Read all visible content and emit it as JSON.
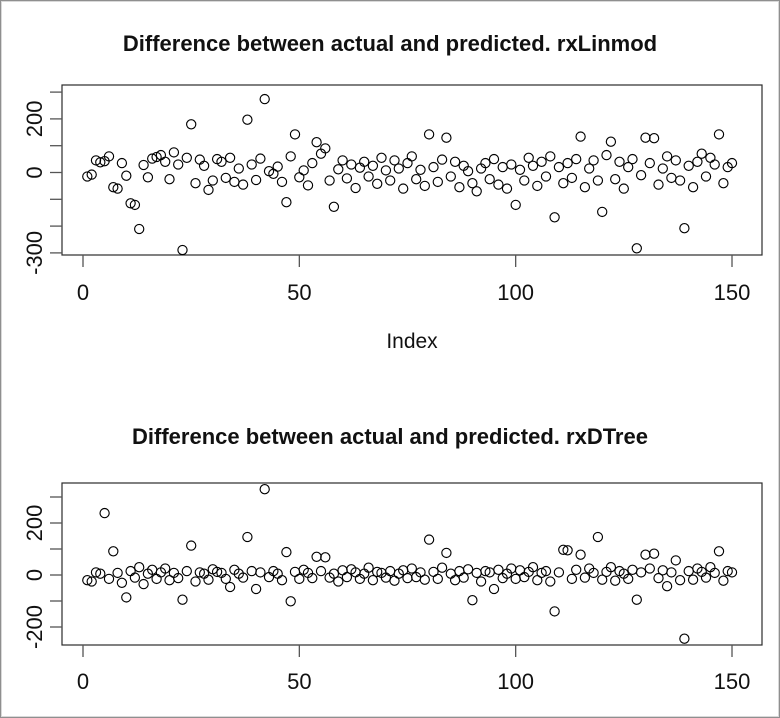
{
  "window": {
    "background_color": "#ffffff",
    "frame_color": "#8f8f8f"
  },
  "chart_data": [
    {
      "type": "scatter",
      "title": "Difference between actual and predicted. rxLinmod",
      "xlabel": "Index",
      "marker": "open-circle",
      "point_color": "#000000",
      "grid": false,
      "x_start_index": 1,
      "xlim": [
        -5,
        156
      ],
      "ylim": [
        -308,
        326
      ],
      "x_ticks": [
        {
          "value": 0,
          "label": "0"
        },
        {
          "value": 50,
          "label": "50"
        },
        {
          "value": 100,
          "label": "100"
        },
        {
          "value": 150,
          "label": "150"
        }
      ],
      "y_ticks": [
        {
          "value": 300,
          "label": ""
        },
        {
          "value": 200,
          "label": "200"
        },
        {
          "value": 100,
          "label": ""
        },
        {
          "value": 0,
          "label": "0"
        },
        {
          "value": -100,
          "label": ""
        },
        {
          "value": -200,
          "label": ""
        },
        {
          "value": -300,
          "label": "-300"
        }
      ],
      "values": [
        -15,
        -8,
        45,
        38,
        42,
        60,
        -55,
        -60,
        35,
        -12,
        -115,
        -121,
        -211,
        28,
        -18,
        52,
        58,
        65,
        40,
        -25,
        75,
        30,
        -289,
        55,
        180,
        -40,
        48,
        25,
        -65,
        -30,
        50,
        40,
        -20,
        55,
        -35,
        15,
        -45,
        197,
        30,
        -28,
        52,
        274,
        5,
        -5,
        22,
        -35,
        -111,
        60,
        142,
        -18,
        8,
        -48,
        35,
        113,
        70,
        90,
        -30,
        -128,
        12,
        45,
        -22,
        30,
        -58,
        18,
        40,
        -15,
        25,
        -42,
        55,
        8,
        -30,
        45,
        15,
        -60,
        35,
        60,
        -25,
        10,
        -50,
        142,
        20,
        -35,
        48,
        130,
        -15,
        40,
        -55,
        25,
        5,
        -40,
        -70,
        15,
        35,
        -25,
        50,
        -45,
        20,
        -60,
        30,
        -121,
        10,
        -30,
        55,
        25,
        -50,
        40,
        -15,
        60,
        -167,
        20,
        -40,
        35,
        -20,
        50,
        134,
        -55,
        15,
        45,
        -30,
        -147,
        65,
        115,
        -25,
        40,
        -60,
        20,
        50,
        -283,
        -10,
        130,
        35,
        128,
        -45,
        15,
        60,
        -20,
        45,
        -30,
        -208,
        25,
        -55,
        40,
        70,
        -15,
        55,
        30,
        142,
        -40,
        20,
        35
      ]
    },
    {
      "type": "scatter",
      "title": "Difference between actual and predicted. rxDTree",
      "marker": "open-circle",
      "point_color": "#000000",
      "grid": false,
      "x_start_index": 1,
      "xlim": [
        -5,
        156
      ],
      "ylim": [
        -355,
        355
      ],
      "x_ticks": [
        {
          "value": 0,
          "label": "0"
        },
        {
          "value": 50,
          "label": "50"
        },
        {
          "value": 100,
          "label": "100"
        },
        {
          "value": 150,
          "label": "150"
        }
      ],
      "y_ticks": [
        {
          "value": 300,
          "label": ""
        },
        {
          "value": 200,
          "label": "200"
        },
        {
          "value": 100,
          "label": ""
        },
        {
          "value": 0,
          "label": "0"
        },
        {
          "value": -100,
          "label": ""
        },
        {
          "value": -200,
          "label": "-200"
        }
      ],
      "values": [
        -20,
        -25,
        10,
        5,
        238,
        -15,
        91,
        8,
        -30,
        -86,
        15,
        -10,
        30,
        -35,
        5,
        20,
        -15,
        10,
        25,
        -20,
        8,
        -12,
        -95,
        15,
        113,
        -25,
        10,
        5,
        -18,
        22,
        12,
        8,
        -15,
        -46,
        20,
        5,
        -10,
        146,
        15,
        -54,
        10,
        330,
        -8,
        15,
        5,
        -20,
        88,
        -101,
        12,
        -15,
        20,
        8,
        -12,
        70,
        15,
        68,
        -10,
        5,
        -25,
        18,
        -8,
        22,
        10,
        -15,
        5,
        28,
        -20,
        12,
        8,
        -10,
        15,
        -22,
        5,
        18,
        -12,
        25,
        -8,
        10,
        -18,
        136,
        12,
        -15,
        28,
        85,
        5,
        -20,
        15,
        -10,
        22,
        -97,
        8,
        -25,
        15,
        10,
        -54,
        20,
        -12,
        5,
        25,
        -15,
        18,
        -8,
        12,
        30,
        -20,
        8,
        15,
        -25,
        -140,
        10,
        97,
        95,
        -15,
        20,
        78,
        -10,
        25,
        8,
        146,
        -18,
        12,
        30,
        -22,
        15,
        5,
        -15,
        20,
        -95,
        10,
        78,
        25,
        82,
        -12,
        18,
        -43,
        10,
        56,
        -20,
        -245,
        15,
        -18,
        25,
        12,
        -10,
        30,
        8,
        91,
        -22,
        15,
        10
      ]
    }
  ]
}
